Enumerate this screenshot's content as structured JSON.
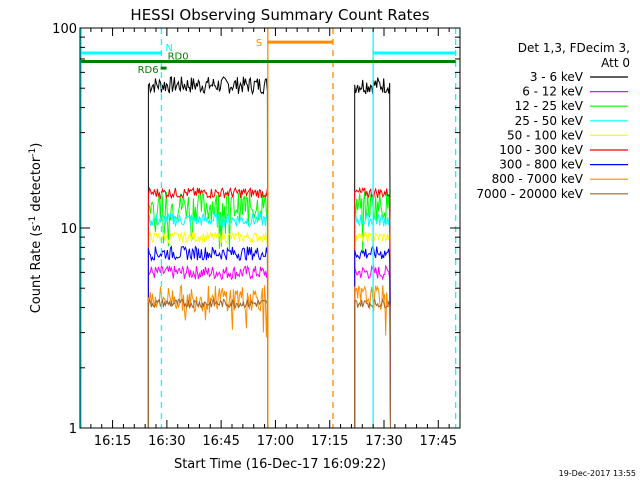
{
  "chart_data": {
    "type": "line",
    "title": "HESSI Observing Summary Count Rates",
    "xlabel": "Start Time (16-Dec-17 16:09:22)",
    "ylabel": "Count Rate (s^-1 detector^-1)",
    "ylabel_parts": {
      "main": "Count Rate (s",
      "sup1": "-1",
      "mid": " detector",
      "sup2": "-1",
      "end": ")"
    },
    "yscale": "log",
    "ylim": [
      1,
      100
    ],
    "xlim_minutes": [
      16.1,
      17.85
    ],
    "x_ticks": [
      {
        "label": "16:15",
        "value": 16.25
      },
      {
        "label": "16:30",
        "value": 16.5
      },
      {
        "label": "16:45",
        "value": 16.75
      },
      {
        "label": "17:00",
        "value": 17.0
      },
      {
        "label": "17:15",
        "value": 17.25
      },
      {
        "label": "17:30",
        "value": 17.5
      },
      {
        "label": "17:45",
        "value": 17.75
      }
    ],
    "y_ticks": [
      {
        "label": "1",
        "value": 1
      },
      {
        "label": "10",
        "value": 10
      },
      {
        "label": "100",
        "value": 100
      }
    ],
    "legend_header": [
      "Det 1,3, FDecim 3,",
      "Att 0"
    ],
    "legend_placement": "right",
    "series": [
      {
        "name": "3 - 6 keV",
        "color": "#000000",
        "level": 52,
        "spread": 0.1
      },
      {
        "name": "6 - 12 keV",
        "color": "#ff00ff",
        "level": 6,
        "spread": 0.08
      },
      {
        "name": "12 - 25 keV",
        "color": "#00ff00",
        "level": 13,
        "spread": 0.18
      },
      {
        "name": "25 - 50 keV",
        "color": "#00ffff",
        "level": 11,
        "spread": 0.08
      },
      {
        "name": "50 - 100 keV",
        "color": "#ffff00",
        "level": 9,
        "spread": 0.06
      },
      {
        "name": "100 - 300 keV",
        "color": "#ff0000",
        "level": 15,
        "spread": 0.06
      },
      {
        "name": "300 - 800 keV",
        "color": "#0000ff",
        "level": 7.5,
        "spread": 0.08
      },
      {
        "name": "800 - 7000 keV",
        "color": "#ff8c00",
        "level": 4.5,
        "spread": 0.15
      },
      {
        "name": "7000 - 20000 keV",
        "color": "#996633",
        "level": 4.2,
        "spread": 0.05
      }
    ],
    "data_intervals": [
      [
        16.415,
        16.965
      ],
      [
        17.365,
        17.53
      ]
    ],
    "fluctuation_seed": 7,
    "annotations": {
      "solar_night_label": "N",
      "saa_label": "S",
      "rd6_label": "RD6",
      "rd0_label": "RD0"
    },
    "night_lines_cyan": [
      16.105,
      17.45
    ],
    "night_lines_cyan_dashed": [
      16.475,
      17.83
    ],
    "night_bars_cyan": [
      {
        "from": 16.105,
        "to": 16.475,
        "level": 75
      },
      {
        "from": 17.45,
        "to": 17.83,
        "level": 75
      }
    ],
    "saa_lines_orange": [
      16.965
    ],
    "saa_lines_orange_dashed": [
      17.265
    ],
    "saa_bar_orange": {
      "from": 16.965,
      "to": 17.265,
      "level": 85
    },
    "green_bar": {
      "from": 16.105,
      "to": 17.83,
      "level": 68
    },
    "rd_marks": [
      {
        "at": 16.485,
        "level": 63
      }
    ],
    "colors": {
      "background": "#ffffff",
      "axes": "#000000",
      "night": "#00ffff",
      "saa": "#ff8c00",
      "green_bar": "#008000"
    }
  },
  "footer_timestamp": "19-Dec-2017 13:55"
}
